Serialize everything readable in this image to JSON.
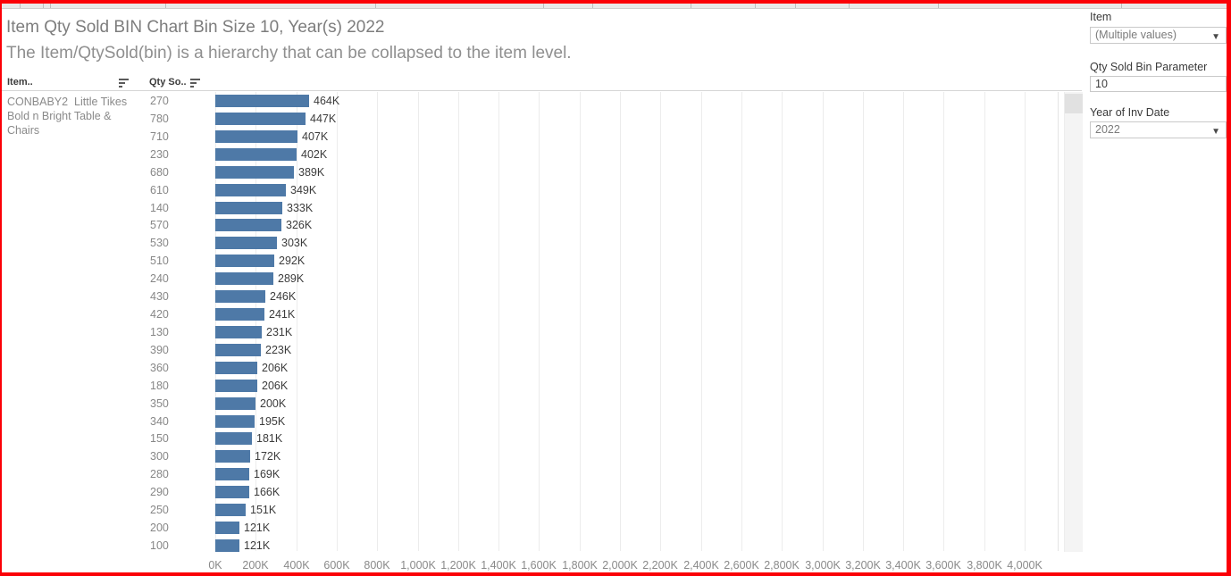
{
  "header": {
    "title": "Item Qty Sold BIN Chart Bin Size 10, Year(s) 2022",
    "subtitle": "The Item/QtySold(bin) is a hierarchy that can be collapsed to the item level."
  },
  "table": {
    "item_header": "Item..",
    "qty_header": "Qty So..",
    "item_cell_text": "CONBABY2  Little Tikes Bold n Bright Table & Chairs"
  },
  "filters": {
    "item_label": "Item",
    "item_value": "(Multiple values)",
    "param_label": "Qty Sold Bin Parameter",
    "param_value": "10",
    "year_label": "Year of Inv Date",
    "year_value": "2022"
  },
  "chart_data": {
    "type": "bar",
    "orientation": "horizontal",
    "title": "Item Qty Sold BIN Chart Bin Size 10, Year(s) 2022",
    "categories": [
      "270",
      "780",
      "710",
      "230",
      "680",
      "610",
      "140",
      "570",
      "530",
      "510",
      "240",
      "430",
      "420",
      "130",
      "390",
      "360",
      "180",
      "350",
      "340",
      "150",
      "300",
      "280",
      "290",
      "250",
      "200",
      "100"
    ],
    "values_k": [
      464,
      447,
      407,
      402,
      389,
      349,
      333,
      326,
      303,
      292,
      289,
      246,
      241,
      231,
      223,
      206,
      206,
      200,
      195,
      181,
      172,
      169,
      166,
      151,
      121,
      121
    ],
    "bar_labels": [
      "464K",
      "447K",
      "407K",
      "402K",
      "389K",
      "349K",
      "333K",
      "326K",
      "303K",
      "292K",
      "289K",
      "246K",
      "241K",
      "231K",
      "223K",
      "206K",
      "206K",
      "200K",
      "195K",
      "181K",
      "172K",
      "169K",
      "166K",
      "151K",
      "121K",
      "121K"
    ],
    "x_ticks": [
      "0K",
      "200K",
      "400K",
      "600K",
      "800K",
      "1,000K",
      "1,200K",
      "1,400K",
      "1,600K",
      "1,800K",
      "2,000K",
      "2,200K",
      "2,400K",
      "2,600K",
      "2,800K",
      "3,000K",
      "3,200K",
      "3,400K",
      "3,600K",
      "3,800K",
      "4,000K"
    ],
    "xlim_k": [
      0,
      4000
    ],
    "grid": true,
    "bar_color": "#4e79a7"
  }
}
